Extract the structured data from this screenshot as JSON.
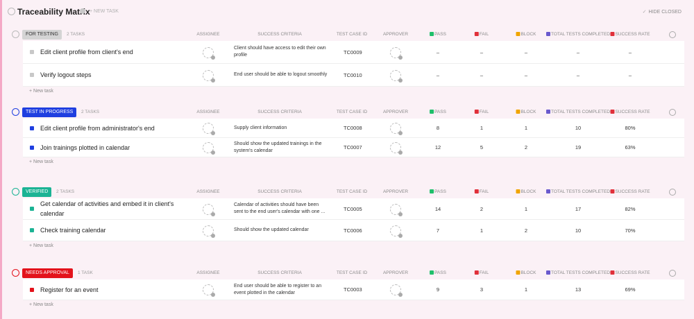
{
  "header": {
    "title": "Traceability Matrix",
    "new_task": "+ NEW TASK",
    "hide_closed": "HIDE CLOSED"
  },
  "columns": [
    "ASSIGNEE",
    "SUCCESS CRITERIA",
    "TEST CASE ID",
    "APPROVER",
    "PASS",
    "FAIL",
    "BLOCK",
    "TOTAL TESTS COMPLETED",
    "SUCCESS RATE"
  ],
  "new_task_row": "+ New task",
  "groups": [
    {
      "status": "FOR TESTING",
      "color": "#d4d4d4",
      "text_color": "#333333",
      "count": "2 TASKS",
      "tasks": [
        {
          "name": "Edit client profile from client's end",
          "criteria": "Client should have access to edit their own profile",
          "id": "TC0009",
          "pass": "–",
          "fail": "–",
          "block": "–",
          "total": "–",
          "rate": "–"
        },
        {
          "name": "Verify logout steps",
          "criteria": "End user should be able to logout smoothly",
          "id": "TC0010",
          "pass": "–",
          "fail": "–",
          "block": "–",
          "total": "–",
          "rate": "–"
        }
      ]
    },
    {
      "status": "TEST IN PROGRESS",
      "color": "#1f3fe0",
      "text_color": "#ffffff",
      "count": "2 TASKS",
      "tasks": [
        {
          "name": "Edit client profile from administrator's end",
          "criteria": "Supply client information",
          "id": "TC0008",
          "pass": "8",
          "fail": "1",
          "block": "1",
          "total": "10",
          "rate": "80%"
        },
        {
          "name": "Join trainings plotted in calendar",
          "criteria": "Should show the updated trainings in the system's calendar",
          "id": "TC0007",
          "pass": "12",
          "fail": "5",
          "block": "2",
          "total": "19",
          "rate": "63%"
        }
      ]
    },
    {
      "status": "VERIFIED",
      "color": "#1bb394",
      "text_color": "#ffffff",
      "count": "2 TASKS",
      "tasks": [
        {
          "name": "Get calendar of activities and embed it in client's calendar",
          "criteria": "Calendar of activities should have been sent to the end user's calendar with one ...",
          "id": "TC0005",
          "pass": "14",
          "fail": "2",
          "block": "1",
          "total": "17",
          "rate": "82%"
        },
        {
          "name": "Check training calendar",
          "criteria": "Should show the updated calendar",
          "id": "TC0006",
          "pass": "7",
          "fail": "1",
          "block": "2",
          "total": "10",
          "rate": "70%"
        }
      ]
    },
    {
      "status": "NEEDS APPROVAL",
      "color": "#e3121b",
      "text_color": "#ffffff",
      "count": "1 TASK",
      "tasks": [
        {
          "name": "Register for an event",
          "criteria": "End user should be able to register to an event plotted in the calendar",
          "id": "TC0003",
          "pass": "9",
          "fail": "3",
          "block": "1",
          "total": "13",
          "rate": "69%"
        }
      ]
    }
  ]
}
